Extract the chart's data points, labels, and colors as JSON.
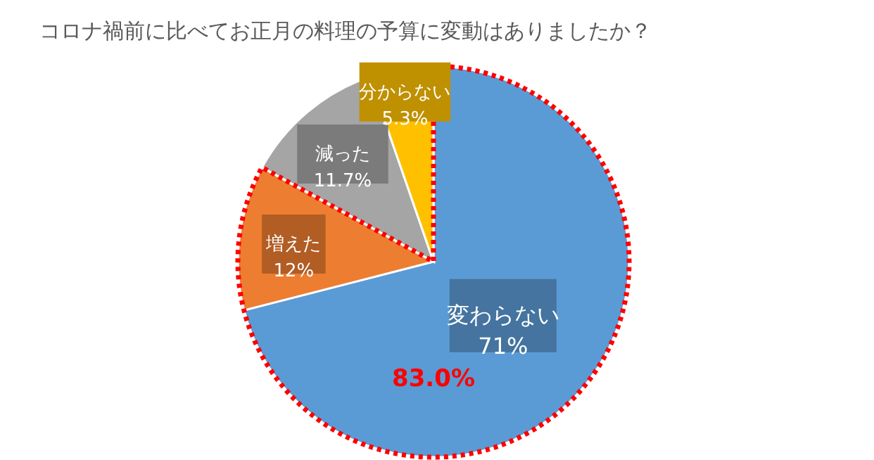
{
  "chart_data": {
    "type": "pie",
    "title": "コロナ禍前に比べてお正月の料理の予算に変動はありましたか？",
    "categories": [
      "変わらない",
      "増えた",
      "減った",
      "分からない"
    ],
    "values": [
      71,
      12,
      11.7,
      5.3
    ],
    "colors": [
      "#5b9bd5",
      "#ed7d31",
      "#a5a5a5",
      "#ffc000"
    ],
    "value_labels": [
      "71%",
      "12%",
      "11.7%",
      "5.3%"
    ],
    "annotations": [
      "83.0%"
    ]
  }
}
